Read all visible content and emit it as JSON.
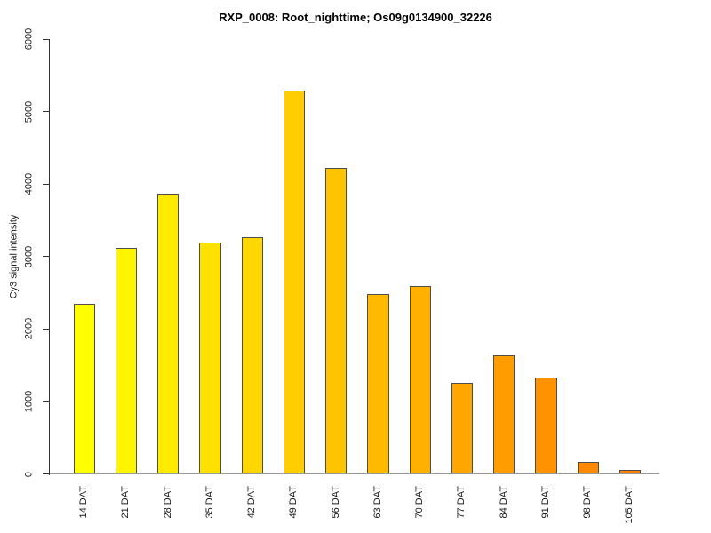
{
  "chart_data": {
    "type": "bar",
    "title": "RXP_0008: Root_nighttime; Os09g0134900_32226",
    "ylabel": "Cy3 signal intensity",
    "xlabel": "",
    "categories": [
      "14 DAT",
      "21 DAT",
      "28 DAT",
      "35 DAT",
      "42 DAT",
      "49 DAT",
      "56 DAT",
      "63 DAT",
      "70 DAT",
      "77 DAT",
      "84 DAT",
      "91 DAT",
      "98 DAT",
      "105 DAT"
    ],
    "values": [
      2350,
      3120,
      3870,
      3190,
      3270,
      5290,
      4220,
      2480,
      2590,
      1260,
      1640,
      1330,
      170,
      50
    ],
    "bar_colors": [
      "#FFFF00",
      "#FFF500",
      "#FFEB00",
      "#FFE100",
      "#FFD700",
      "#FFCD00",
      "#FFC400",
      "#FFBA00",
      "#FFB000",
      "#FFA600",
      "#FF9C00",
      "#FF9200",
      "#FF8900",
      "#FF7F00"
    ],
    "bar_border_color": "#4d4d4d",
    "axis_color": "#333333",
    "baseline_color": "#9a9a9a",
    "yticks": [
      0,
      1000,
      2000,
      3000,
      4000,
      5000,
      6000
    ],
    "ylim": [
      0,
      6000
    ],
    "grid": false,
    "legend_position": "none"
  }
}
